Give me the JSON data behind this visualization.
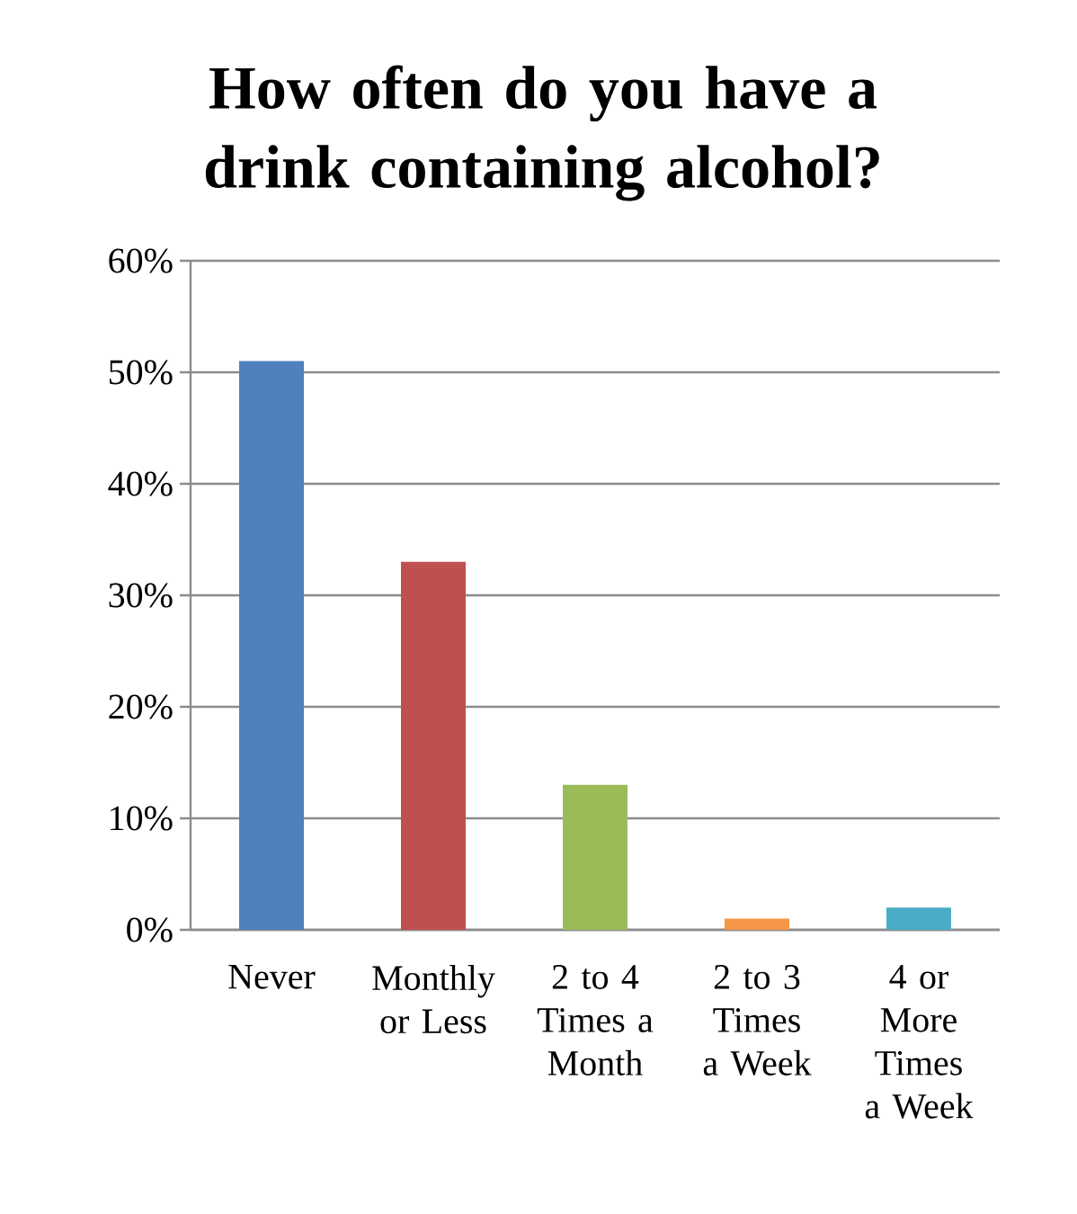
{
  "chart_data": {
    "type": "bar",
    "title": "How often do you have a drink containing alcohol?",
    "categories": [
      "Never",
      "Monthly or Less",
      "2 to 4 Times a Month",
      "2 to 3 Times a Week",
      "4 or More Times a Week"
    ],
    "values": [
      51,
      33,
      13,
      1,
      2
    ],
    "colors": [
      "#4f81bd",
      "#c0504d",
      "#9bbb59",
      "#f79646",
      "#4bacc6"
    ],
    "ylim": [
      0,
      60
    ],
    "yticks": [
      {
        "value": 0,
        "label": "0%"
      },
      {
        "value": 10,
        "label": "10%"
      },
      {
        "value": 20,
        "label": "20%"
      },
      {
        "value": 30,
        "label": "30%"
      },
      {
        "value": 40,
        "label": "40%"
      },
      {
        "value": 50,
        "label": "50%"
      },
      {
        "value": 60,
        "label": "60%"
      }
    ],
    "grid": "y"
  }
}
